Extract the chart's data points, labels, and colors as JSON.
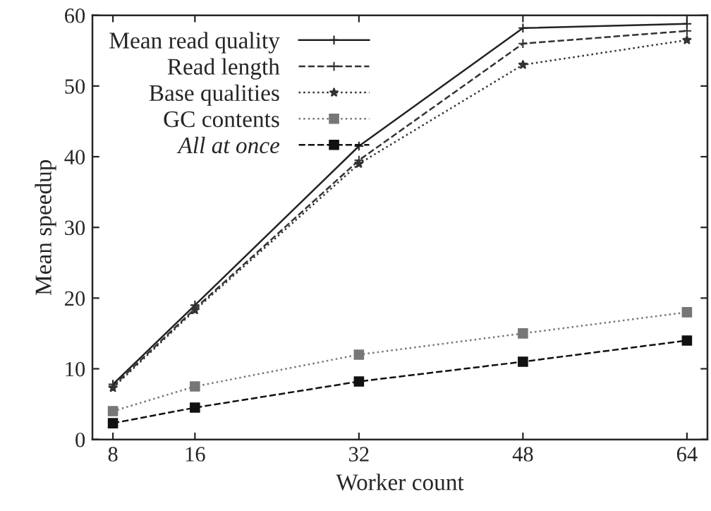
{
  "chart_data": {
    "type": "line",
    "xlabel": "Worker count",
    "ylabel": "Mean speedup",
    "x": [
      8,
      16,
      32,
      48,
      64
    ],
    "xlim": [
      6,
      66
    ],
    "xticks": [
      8,
      16,
      32,
      48,
      64
    ],
    "ylim": [
      0,
      60
    ],
    "yticks": [
      0,
      10,
      20,
      30,
      40,
      50,
      60
    ],
    "grid": false,
    "legend": "top left",
    "series": [
      {
        "name": "Mean read quality",
        "color": "#222222",
        "marker": "cross",
        "line_style": "solid",
        "values": [
          7.8,
          19,
          41.5,
          58.2,
          58.8
        ]
      },
      {
        "name": "Read length",
        "color": "#333333",
        "marker": "cross",
        "line_style": "dashed",
        "values": [
          7.5,
          18.5,
          39.5,
          56,
          57.8
        ]
      },
      {
        "name": "Base qualities",
        "color": "#333333",
        "marker": "star",
        "line_style": "dotted",
        "values": [
          7.3,
          18.3,
          39,
          53,
          56.5
        ]
      },
      {
        "name": "GC contents",
        "color": "#777777",
        "marker": "square",
        "line_style": "dotted",
        "values": [
          4,
          7.5,
          12,
          15,
          18
        ]
      },
      {
        "name": "All at once",
        "color": "#111111",
        "marker": "square",
        "line_style": "dashed",
        "values": [
          2.3,
          4.5,
          8.2,
          11,
          14
        ]
      }
    ]
  }
}
